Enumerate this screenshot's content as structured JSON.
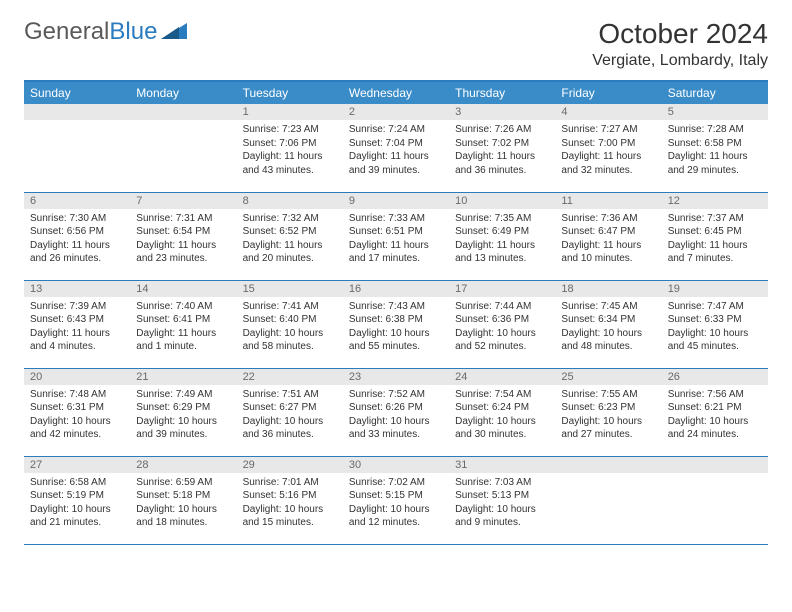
{
  "logo": {
    "text1": "General",
    "text2": "Blue"
  },
  "title": "October 2024",
  "location": "Vergiate, Lombardy, Italy",
  "weekdays": [
    "Sunday",
    "Monday",
    "Tuesday",
    "Wednesday",
    "Thursday",
    "Friday",
    "Saturday"
  ],
  "colors": {
    "header_bg": "#3a8cc9",
    "border": "#2b7bbf",
    "daynum_bg": "#e8e8e8",
    "daynum_fg": "#6a6a6a",
    "text": "#333333",
    "logo_gray": "#5a5a5a",
    "logo_blue": "#2b7bbf"
  },
  "weeks": [
    [
      null,
      null,
      {
        "n": "1",
        "sr": "7:23 AM",
        "ss": "7:06 PM",
        "dl": "11 hours and 43 minutes."
      },
      {
        "n": "2",
        "sr": "7:24 AM",
        "ss": "7:04 PM",
        "dl": "11 hours and 39 minutes."
      },
      {
        "n": "3",
        "sr": "7:26 AM",
        "ss": "7:02 PM",
        "dl": "11 hours and 36 minutes."
      },
      {
        "n": "4",
        "sr": "7:27 AM",
        "ss": "7:00 PM",
        "dl": "11 hours and 32 minutes."
      },
      {
        "n": "5",
        "sr": "7:28 AM",
        "ss": "6:58 PM",
        "dl": "11 hours and 29 minutes."
      }
    ],
    [
      {
        "n": "6",
        "sr": "7:30 AM",
        "ss": "6:56 PM",
        "dl": "11 hours and 26 minutes."
      },
      {
        "n": "7",
        "sr": "7:31 AM",
        "ss": "6:54 PM",
        "dl": "11 hours and 23 minutes."
      },
      {
        "n": "8",
        "sr": "7:32 AM",
        "ss": "6:52 PM",
        "dl": "11 hours and 20 minutes."
      },
      {
        "n": "9",
        "sr": "7:33 AM",
        "ss": "6:51 PM",
        "dl": "11 hours and 17 minutes."
      },
      {
        "n": "10",
        "sr": "7:35 AM",
        "ss": "6:49 PM",
        "dl": "11 hours and 13 minutes."
      },
      {
        "n": "11",
        "sr": "7:36 AM",
        "ss": "6:47 PM",
        "dl": "11 hours and 10 minutes."
      },
      {
        "n": "12",
        "sr": "7:37 AM",
        "ss": "6:45 PM",
        "dl": "11 hours and 7 minutes."
      }
    ],
    [
      {
        "n": "13",
        "sr": "7:39 AM",
        "ss": "6:43 PM",
        "dl": "11 hours and 4 minutes."
      },
      {
        "n": "14",
        "sr": "7:40 AM",
        "ss": "6:41 PM",
        "dl": "11 hours and 1 minute."
      },
      {
        "n": "15",
        "sr": "7:41 AM",
        "ss": "6:40 PM",
        "dl": "10 hours and 58 minutes."
      },
      {
        "n": "16",
        "sr": "7:43 AM",
        "ss": "6:38 PM",
        "dl": "10 hours and 55 minutes."
      },
      {
        "n": "17",
        "sr": "7:44 AM",
        "ss": "6:36 PM",
        "dl": "10 hours and 52 minutes."
      },
      {
        "n": "18",
        "sr": "7:45 AM",
        "ss": "6:34 PM",
        "dl": "10 hours and 48 minutes."
      },
      {
        "n": "19",
        "sr": "7:47 AM",
        "ss": "6:33 PM",
        "dl": "10 hours and 45 minutes."
      }
    ],
    [
      {
        "n": "20",
        "sr": "7:48 AM",
        "ss": "6:31 PM",
        "dl": "10 hours and 42 minutes."
      },
      {
        "n": "21",
        "sr": "7:49 AM",
        "ss": "6:29 PM",
        "dl": "10 hours and 39 minutes."
      },
      {
        "n": "22",
        "sr": "7:51 AM",
        "ss": "6:27 PM",
        "dl": "10 hours and 36 minutes."
      },
      {
        "n": "23",
        "sr": "7:52 AM",
        "ss": "6:26 PM",
        "dl": "10 hours and 33 minutes."
      },
      {
        "n": "24",
        "sr": "7:54 AM",
        "ss": "6:24 PM",
        "dl": "10 hours and 30 minutes."
      },
      {
        "n": "25",
        "sr": "7:55 AM",
        "ss": "6:23 PM",
        "dl": "10 hours and 27 minutes."
      },
      {
        "n": "26",
        "sr": "7:56 AM",
        "ss": "6:21 PM",
        "dl": "10 hours and 24 minutes."
      }
    ],
    [
      {
        "n": "27",
        "sr": "6:58 AM",
        "ss": "5:19 PM",
        "dl": "10 hours and 21 minutes."
      },
      {
        "n": "28",
        "sr": "6:59 AM",
        "ss": "5:18 PM",
        "dl": "10 hours and 18 minutes."
      },
      {
        "n": "29",
        "sr": "7:01 AM",
        "ss": "5:16 PM",
        "dl": "10 hours and 15 minutes."
      },
      {
        "n": "30",
        "sr": "7:02 AM",
        "ss": "5:15 PM",
        "dl": "10 hours and 12 minutes."
      },
      {
        "n": "31",
        "sr": "7:03 AM",
        "ss": "5:13 PM",
        "dl": "10 hours and 9 minutes."
      },
      null,
      null
    ]
  ]
}
